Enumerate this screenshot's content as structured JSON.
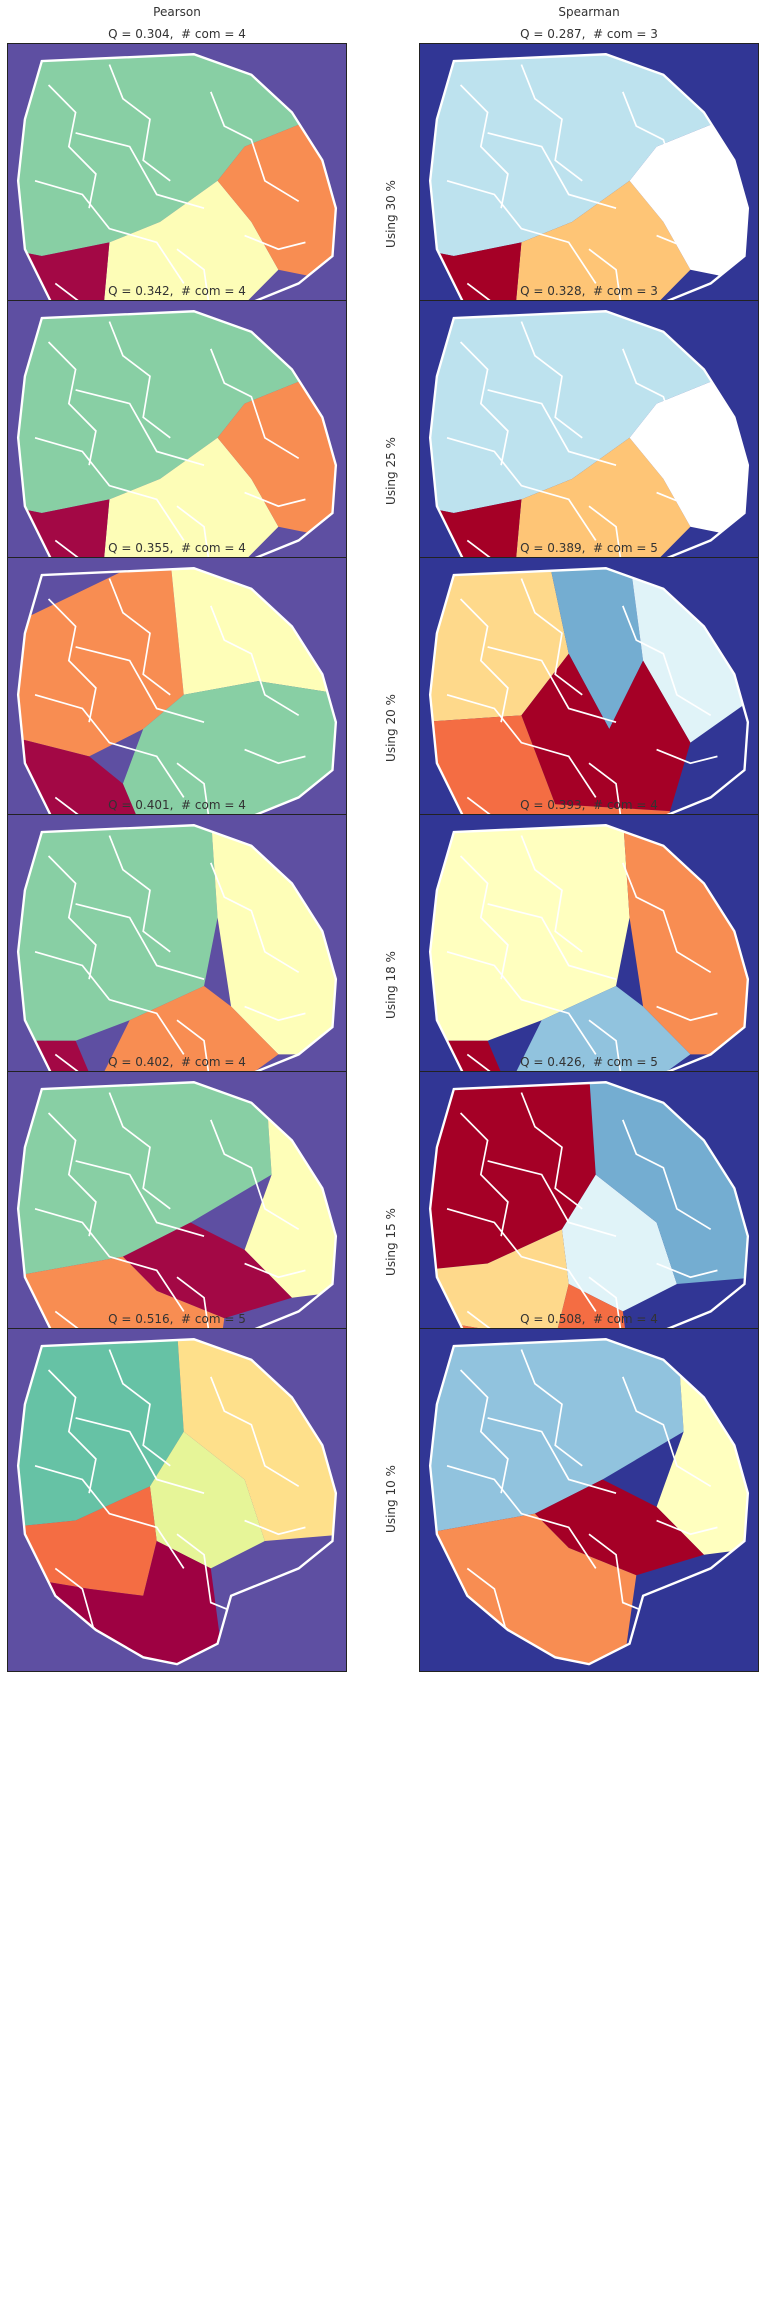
{
  "columns": [
    "Pearson",
    "Spearman"
  ],
  "colors": {
    "pearson_bg": "#5e4fa2",
    "spearman_bg": "#313695",
    "boundary": "#ffffff"
  },
  "rows": [
    {
      "label": "Using 30 %",
      "pearson": {
        "title": "Q = 0.304,  # com = 4",
        "communities": 4,
        "palette": [
          "#88cfa4",
          "#fdfdb7",
          "#f88d52",
          "#a30845"
        ]
      },
      "spearman": {
        "title": "Q = 0.287,  # com = 3",
        "communities": 3,
        "palette": [
          "#bde2ee",
          "#fec576",
          "#ffffff",
          "#a50026"
        ]
      }
    },
    {
      "label": "Using 25 %",
      "pearson": {
        "title": "Q = 0.342,  # com = 4",
        "communities": 4,
        "palette": [
          "#88cfa4",
          "#fdfdb7",
          "#f88d52",
          "#a30845"
        ]
      },
      "spearman": {
        "title": "Q = 0.328,  # com = 3",
        "communities": 3,
        "palette": [
          "#bde2ee",
          "#fec576",
          "#ffffff",
          "#a50026"
        ]
      }
    },
    {
      "label": "Using 20 %",
      "pearson": {
        "title": "Q = 0.355,  # com = 4",
        "communities": 4,
        "palette": [
          "#f88d52",
          "#fefeb8",
          "#88cfa4",
          "#a30845"
        ]
      },
      "spearman": {
        "title": "Q = 0.389,  # com = 5",
        "communities": 5,
        "palette": [
          "#fed98b",
          "#74add1",
          "#e0f3f8",
          "#a50026",
          "#f46d43"
        ]
      }
    },
    {
      "label": "Using 18 %",
      "pearson": {
        "title": "Q = 0.401,  # com = 4",
        "communities": 4,
        "palette": [
          "#88cfa4",
          "#fefeb8",
          "#f88d52",
          "#a30845"
        ]
      },
      "spearman": {
        "title": "Q = 0.393,  # com = 4",
        "communities": 4,
        "palette": [
          "#ffffbf",
          "#f88d52",
          "#91c3de",
          "#a50026"
        ]
      }
    },
    {
      "label": "Using 15 %",
      "pearson": {
        "title": "Q = 0.402,  # com = 4",
        "communities": 4,
        "palette": [
          "#88cfa4",
          "#fefeb8",
          "#a30845",
          "#f88d52"
        ]
      },
      "spearman": {
        "title": "Q = 0.426,  # com = 5",
        "communities": 5,
        "palette": [
          "#a50026",
          "#e0f3f8",
          "#74add1",
          "#fed98b",
          "#f46d43"
        ]
      }
    },
    {
      "label": "Using 10 %",
      "pearson": {
        "title": "Q = 0.516,  # com = 5",
        "communities": 5,
        "palette": [
          "#66c2a5",
          "#e6f598",
          "#fee08b",
          "#f46d43",
          "#9e0142"
        ]
      },
      "spearman": {
        "title": "Q = 0.508,  # com = 4",
        "communities": 4,
        "palette": [
          "#91c3de",
          "#ffffbf",
          "#a50026",
          "#f88d52"
        ]
      }
    }
  ]
}
